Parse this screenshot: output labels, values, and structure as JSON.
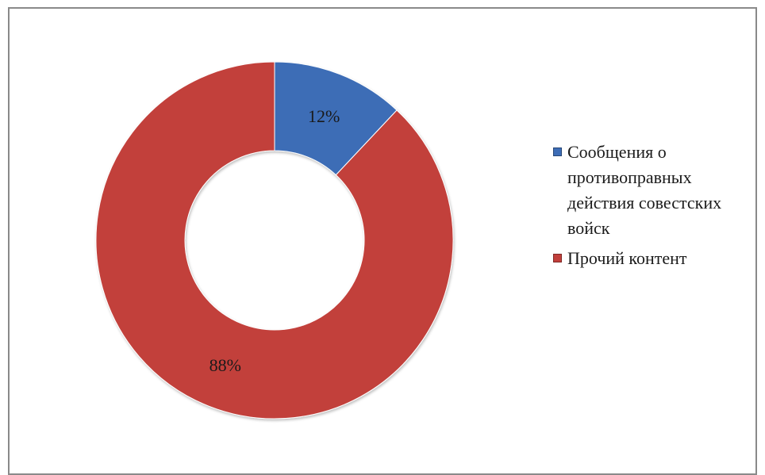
{
  "chart_data": {
    "type": "pie",
    "variant": "doughnut",
    "title": "",
    "legend_position": "right",
    "series": [
      {
        "values": [
          12,
          88
        ],
        "labels": [
          "Сообщения о противоправных действия совестских войск",
          "Прочий контент"
        ],
        "data_labels": [
          "12%",
          "88%"
        ],
        "colors": [
          "#3d6db6",
          "#c23f3b"
        ]
      }
    ]
  },
  "legend": {
    "items": [
      {
        "label": "Сообщения о противоправных действия совестских войск",
        "color": "#3d6db6"
      },
      {
        "label": "Прочий контент",
        "color": "#c23f3b"
      }
    ]
  }
}
